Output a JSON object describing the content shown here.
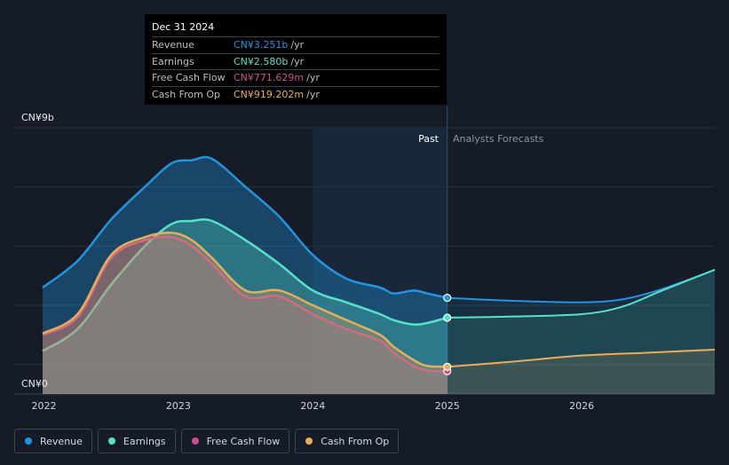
{
  "chart_data": {
    "type": "area",
    "unit": "CNY",
    "y_axis": {
      "max_label": "CN¥9b",
      "min_label": "CN¥0",
      "ylim": [
        0,
        9
      ]
    },
    "x_ticks": [
      {
        "label": "2022",
        "value": 2022.0
      },
      {
        "label": "2023",
        "value": 2023.0
      },
      {
        "label": "2024",
        "value": 2024.0
      },
      {
        "label": "2025",
        "value": 2025.0
      },
      {
        "label": "2026",
        "value": 2026.0
      }
    ],
    "xlim": [
      2021.79,
      2026.99
    ],
    "past_label": "Past",
    "forecast_label": "Analysts Forecasts",
    "divider_x": 2025.0,
    "shade_start_x": 2024.0,
    "series": [
      {
        "name": "Revenue",
        "color": "#2394df",
        "points": [
          [
            2021.99,
            3.6
          ],
          [
            2022.25,
            4.5
          ],
          [
            2022.5,
            5.9
          ],
          [
            2022.75,
            7.0
          ],
          [
            2022.95,
            7.8
          ],
          [
            2023.1,
            7.9
          ],
          [
            2023.25,
            7.95
          ],
          [
            2023.5,
            7.0
          ],
          [
            2023.75,
            6.0
          ],
          [
            2024.0,
            4.7
          ],
          [
            2024.25,
            3.9
          ],
          [
            2024.5,
            3.6
          ],
          [
            2024.6,
            3.4
          ],
          [
            2024.75,
            3.5
          ],
          [
            2024.85,
            3.4
          ],
          [
            2025.0,
            3.251
          ]
        ],
        "forecast": [
          [
            2025.0,
            3.251
          ],
          [
            2025.5,
            3.15
          ],
          [
            2026.0,
            3.1
          ],
          [
            2026.3,
            3.2
          ],
          [
            2026.6,
            3.55
          ],
          [
            2026.99,
            4.2
          ]
        ]
      },
      {
        "name": "Earnings",
        "color": "#58e1c8",
        "points": [
          [
            2021.99,
            1.45
          ],
          [
            2022.25,
            2.2
          ],
          [
            2022.5,
            3.7
          ],
          [
            2022.75,
            5.0
          ],
          [
            2022.95,
            5.75
          ],
          [
            2023.1,
            5.85
          ],
          [
            2023.25,
            5.85
          ],
          [
            2023.5,
            5.2
          ],
          [
            2023.75,
            4.4
          ],
          [
            2024.0,
            3.5
          ],
          [
            2024.25,
            3.1
          ],
          [
            2024.5,
            2.7
          ],
          [
            2024.6,
            2.5
          ],
          [
            2024.75,
            2.35
          ],
          [
            2024.85,
            2.4
          ],
          [
            2025.0,
            2.58
          ]
        ],
        "forecast": [
          [
            2025.0,
            2.58
          ],
          [
            2025.5,
            2.62
          ],
          [
            2026.0,
            2.7
          ],
          [
            2026.3,
            2.95
          ],
          [
            2026.6,
            3.5
          ],
          [
            2026.99,
            4.2
          ]
        ]
      },
      {
        "name": "Free Cash Flow",
        "color": "#cd4f8f",
        "points": [
          [
            2021.99,
            2.0
          ],
          [
            2022.25,
            2.6
          ],
          [
            2022.5,
            4.6
          ],
          [
            2022.75,
            5.2
          ],
          [
            2022.95,
            5.3
          ],
          [
            2023.1,
            5.0
          ],
          [
            2023.25,
            4.4
          ],
          [
            2023.5,
            3.3
          ],
          [
            2023.75,
            3.3
          ],
          [
            2024.0,
            2.7
          ],
          [
            2024.25,
            2.2
          ],
          [
            2024.5,
            1.8
          ],
          [
            2024.6,
            1.4
          ],
          [
            2024.75,
            0.95
          ],
          [
            2024.85,
            0.8
          ],
          [
            2025.0,
            0.771629
          ]
        ],
        "forecast": []
      },
      {
        "name": "Cash From Op",
        "color": "#e8ad5b",
        "points": [
          [
            2021.99,
            2.05
          ],
          [
            2022.25,
            2.7
          ],
          [
            2022.5,
            4.7
          ],
          [
            2022.75,
            5.3
          ],
          [
            2022.95,
            5.45
          ],
          [
            2023.1,
            5.2
          ],
          [
            2023.25,
            4.6
          ],
          [
            2023.5,
            3.5
          ],
          [
            2023.75,
            3.5
          ],
          [
            2024.0,
            3.0
          ],
          [
            2024.25,
            2.5
          ],
          [
            2024.5,
            2.0
          ],
          [
            2024.6,
            1.6
          ],
          [
            2024.75,
            1.15
          ],
          [
            2024.85,
            0.95
          ],
          [
            2025.0,
            0.919202
          ]
        ],
        "forecast": [
          [
            2025.0,
            0.919202
          ],
          [
            2025.5,
            1.1
          ],
          [
            2026.0,
            1.3
          ],
          [
            2026.5,
            1.4
          ],
          [
            2026.99,
            1.5
          ]
        ]
      }
    ]
  },
  "tooltip": {
    "date": "Dec 31 2024",
    "unit": "/yr",
    "rows": [
      {
        "name": "Revenue",
        "value": "CN¥3.251b",
        "color": "#2394df"
      },
      {
        "name": "Earnings",
        "value": "CN¥2.580b",
        "color": "#58e1c8"
      },
      {
        "name": "Free Cash Flow",
        "value": "CN¥771.629m",
        "color": "#cd4f8f"
      },
      {
        "name": "Cash From Op",
        "value": "CN¥919.202m",
        "color": "#e8ad5b"
      }
    ]
  },
  "legend": [
    {
      "label": "Revenue",
      "color": "#2394df"
    },
    {
      "label": "Earnings",
      "color": "#58e1c8"
    },
    {
      "label": "Free Cash Flow",
      "color": "#cd4f8f"
    },
    {
      "label": "Cash From Op",
      "color": "#e8ad5b"
    }
  ]
}
